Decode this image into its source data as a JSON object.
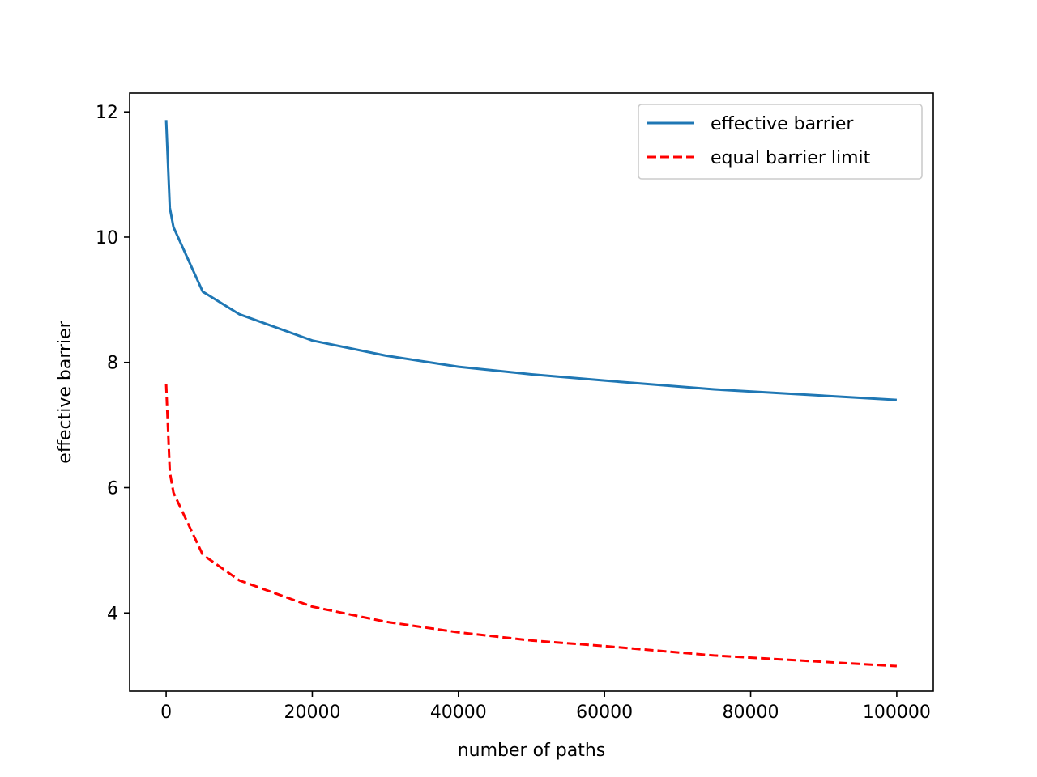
{
  "chart_data": {
    "type": "line",
    "title": "",
    "xlabel": "number of paths",
    "ylabel": "effective barrier",
    "xlim": [
      -5000,
      105000
    ],
    "ylim": [
      2.75,
      12.3
    ],
    "xticks": [
      0,
      20000,
      40000,
      60000,
      80000,
      100000
    ],
    "xtick_labels": [
      "0",
      "20000",
      "40000",
      "60000",
      "80000",
      "100000"
    ],
    "yticks": [
      4,
      6,
      8,
      10,
      12
    ],
    "ytick_labels": [
      "4",
      "6",
      "8",
      "10",
      "12"
    ],
    "grid": false,
    "legend_position": "upper right",
    "series": [
      {
        "name": "effective barrier",
        "color": "#1f77b4",
        "style": "solid",
        "x": [
          1,
          500,
          1000,
          5000,
          10000,
          20000,
          30000,
          40000,
          50000,
          60000,
          75000,
          100000
        ],
        "y": [
          11.87,
          10.47,
          10.16,
          9.13,
          8.77,
          8.35,
          8.11,
          7.93,
          7.81,
          7.71,
          7.57,
          7.4
        ]
      },
      {
        "name": "equal barrier limit",
        "color": "#ff0000",
        "style": "dashed",
        "x": [
          1,
          500,
          1000,
          5000,
          10000,
          20000,
          30000,
          40000,
          50000,
          60000,
          75000,
          100000
        ],
        "y": [
          7.65,
          6.25,
          5.92,
          4.93,
          4.52,
          4.1,
          3.86,
          3.69,
          3.56,
          3.47,
          3.32,
          3.15
        ]
      }
    ]
  }
}
